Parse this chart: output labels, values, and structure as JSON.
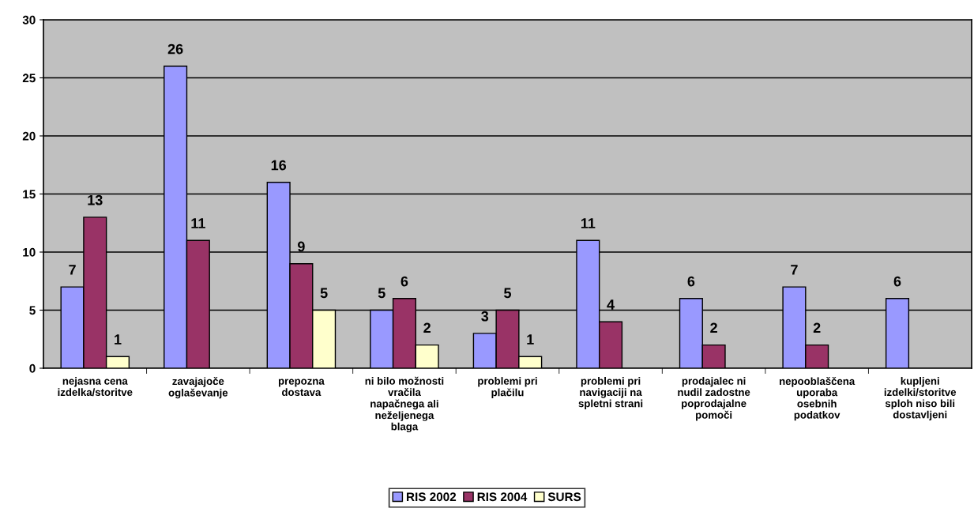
{
  "chart_data": {
    "type": "bar",
    "categories": [
      "nejasna cena\nizdelka/storitve",
      "zavajajoče\noglaševanje",
      "prepozna\ndostava",
      "ni bilo možnosti\nvračila\nnapačnega ali\nneželjenega\nblaga",
      "problemi pri\nplačilu",
      "problemi pri\nnavigaciji na\nspletni strani",
      "prodajalec ni\nnudil zadostne\npoprodajalne\npomoči",
      "nepooblaščena\nuporaba\nosebnih\npodatkov",
      "kupljeni\nizdelki/storitve\nsploh niso bili\ndostavljeni"
    ],
    "series": [
      {
        "name": "RIS 2002",
        "color": "#9999ff",
        "values": [
          7,
          26,
          16,
          5,
          3,
          11,
          6,
          7,
          6
        ]
      },
      {
        "name": "RIS 2004",
        "color": "#993366",
        "values": [
          13,
          11,
          9,
          6,
          5,
          4,
          2,
          2,
          null
        ]
      },
      {
        "name": "SURS",
        "color": "#ffffcc",
        "values": [
          1,
          null,
          5,
          2,
          1,
          null,
          null,
          null,
          null
        ]
      }
    ],
    "ylim": [
      0,
      30
    ],
    "yticks": [
      0,
      5,
      10,
      15,
      20,
      25,
      30
    ],
    "grid": "y",
    "legend": "bottom",
    "data_labels": true
  }
}
